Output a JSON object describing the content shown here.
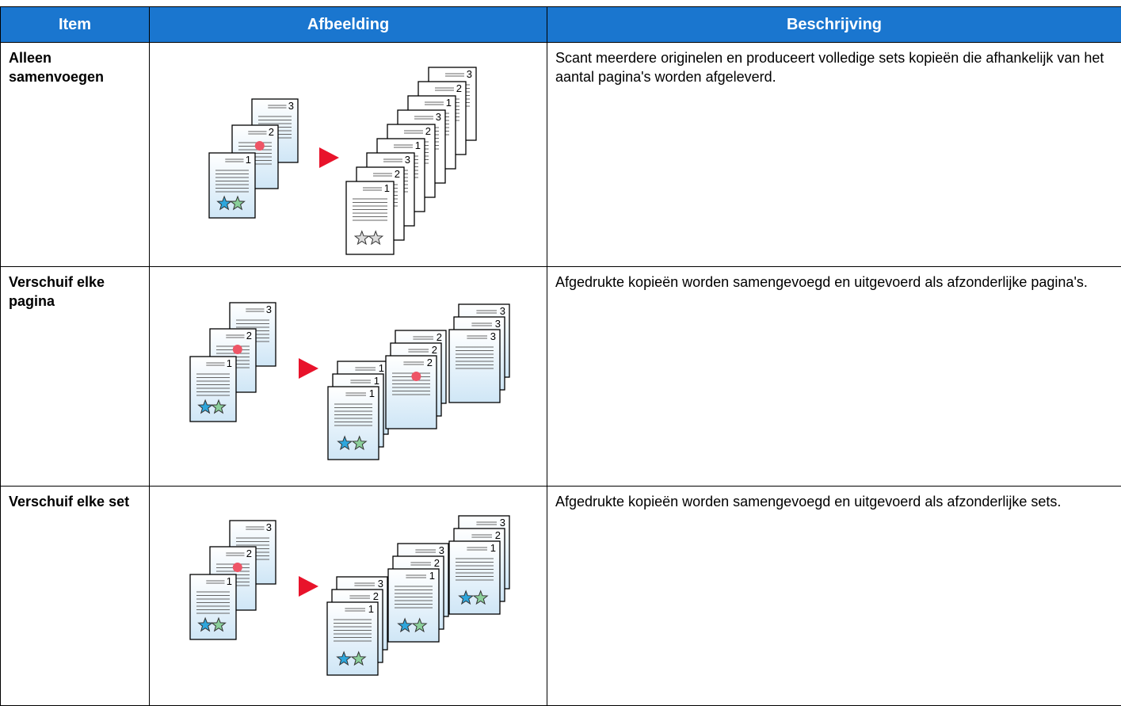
{
  "table": {
    "header": [
      "Item",
      "Afbeelding",
      "Beschrijving"
    ],
    "rows": [
      {
        "item": "Alleen samenvoegen",
        "description": "Scant meerdere originelen en produceert volledige sets kopieën die afhankelijk van het aantal pagina's worden afgeleverd."
      },
      {
        "item": "Verschuif elke pagina",
        "description": "Afgedrukte kopieën worden samengevoegd en uitgevoerd als afzonderlijke pagina's."
      },
      {
        "item": "Verschuif elke set",
        "description": "Afgedrukte kopieën worden samengevoegd en uitgevoerd als afzonderlijke sets."
      }
    ]
  },
  "illustration": {
    "page_numbers": [
      "1",
      "2",
      "3"
    ]
  }
}
